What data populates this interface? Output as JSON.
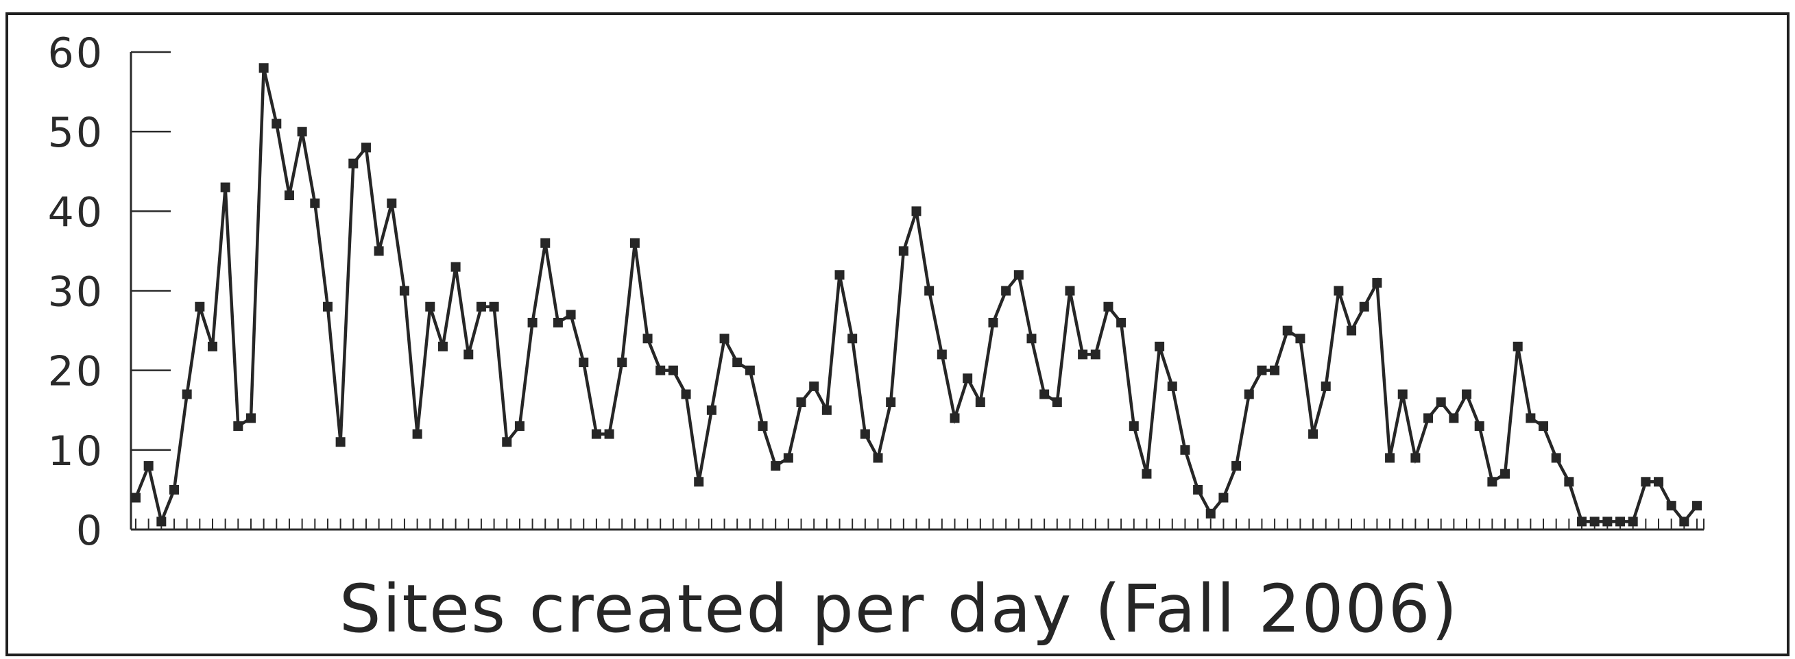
{
  "chart_data": {
    "type": "line",
    "title": "Sites created per day (Fall 2006)",
    "xlabel": "",
    "ylabel": "",
    "ylim": [
      0,
      60
    ],
    "yticks": [
      0,
      10,
      20,
      30,
      40,
      50,
      60
    ],
    "ytick_labels": [
      "0",
      "10",
      "20",
      "30",
      "40",
      "50",
      "60"
    ],
    "grid": false,
    "legend": "none",
    "marker": "square",
    "line_color": "#262626",
    "series": [
      {
        "values": [
          4,
          8,
          1,
          5,
          17,
          28,
          23,
          43,
          13,
          14,
          58,
          51,
          42,
          50,
          41,
          28,
          11,
          46,
          48,
          35,
          41,
          30,
          12,
          28,
          23,
          33,
          22,
          28,
          28,
          11,
          13,
          26,
          36,
          26,
          27,
          21,
          12,
          12,
          21,
          36,
          24,
          20,
          20,
          17,
          6,
          15,
          24,
          21,
          20,
          13,
          8,
          9,
          16,
          18,
          15,
          32,
          24,
          12,
          9,
          16,
          35,
          40,
          30,
          22,
          14,
          19,
          16,
          26,
          30,
          32,
          24,
          17,
          16,
          30,
          22,
          22,
          28,
          26,
          13,
          7,
          23,
          18,
          10,
          5,
          2,
          4,
          8,
          17,
          20,
          20,
          25,
          24,
          12,
          18,
          30,
          25,
          28,
          31,
          9,
          17,
          9,
          14,
          16,
          14,
          17,
          13,
          6,
          7,
          23,
          14,
          13,
          9,
          6,
          1,
          1,
          1,
          1,
          1,
          6,
          6,
          3,
          1,
          3
        ]
      }
    ]
  }
}
